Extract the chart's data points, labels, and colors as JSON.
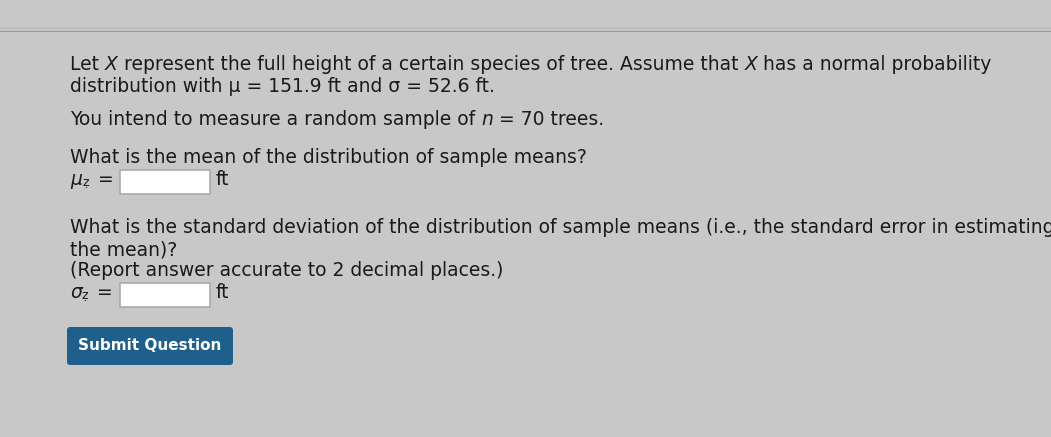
{
  "bg_color": "#c8c8c8",
  "content_bg": "#f0efee",
  "text_color": "#1a1a1a",
  "font_size": 13.5,
  "small_font_size": 9,
  "btn_color": "#1f5f8b",
  "btn_text_color": "#ffffff",
  "btn_text": "Submit Question",
  "box_edge_color": "#aaaaaa",
  "top_line_color": "#999999",
  "line1a": "Let ",
  "line1X1": "X",
  "line1b": " represent the full height of a certain species of tree. Assume that ",
  "line1X2": "X",
  "line1c": " has a normal probability",
  "line2": "distribution with μ = 151.9 ft and σ = 52.6 ft.",
  "line3a": "You intend to measure a random sample of ",
  "line3n": "n",
  "line3b": " = 70 trees.",
  "q1": "What is the mean of the distribution of sample means?",
  "mu_sym": "μ",
  "mu_sub": "ẓ",
  "sigma_sym": "σ",
  "sigma_sub": "ẓ",
  "ft": "ft",
  "eq": " = ",
  "q2a": "What is the standard deviation of the distribution of sample means (i.e., the standard error in estimating",
  "q2b": "the mean)?",
  "q2c": "(Report answer accurate to 2 decimal places.)"
}
